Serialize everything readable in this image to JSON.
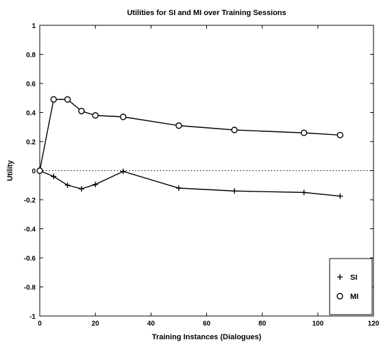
{
  "chart_data": {
    "type": "line",
    "title": "Utilities for SI and MI over Training Sessions",
    "xlabel": "Training Instances (Dialogues)",
    "ylabel": "Utility",
    "xlim": [
      0,
      120
    ],
    "ylim": [
      -1,
      1
    ],
    "xticks": [
      0,
      20,
      40,
      60,
      80,
      100,
      120
    ],
    "yticks": [
      -1,
      -0.8,
      -0.6,
      -0.4,
      -0.2,
      0,
      0.2,
      0.4,
      0.6,
      0.8,
      1
    ],
    "xtick_labels": [
      "0",
      "20",
      "40",
      "60",
      "80",
      "100",
      "120"
    ],
    "ytick_labels": [
      "-1",
      "-0.8",
      "-0.6",
      "-0.4",
      "-0.2",
      "0",
      "0.2",
      "0.4",
      "0.6",
      "0.8",
      "1"
    ],
    "grid": false,
    "legend_position": "bottom-right",
    "reference_line": {
      "y": 0,
      "style": "dotted"
    },
    "series": [
      {
        "name": "SI",
        "marker": "plus",
        "color": "#000000",
        "x": [
          0,
          5,
          10,
          15,
          20,
          30,
          50,
          70,
          95,
          108
        ],
        "y": [
          0,
          -0.04,
          -0.1,
          -0.125,
          -0.095,
          -0.005,
          -0.12,
          -0.14,
          -0.15,
          -0.175
        ]
      },
      {
        "name": "MI",
        "marker": "circle",
        "color": "#000000",
        "x": [
          0,
          5,
          10,
          15,
          20,
          30,
          50,
          70,
          95,
          108
        ],
        "y": [
          0,
          0.49,
          0.49,
          0.41,
          0.38,
          0.37,
          0.31,
          0.28,
          0.26,
          0.245
        ]
      }
    ]
  }
}
